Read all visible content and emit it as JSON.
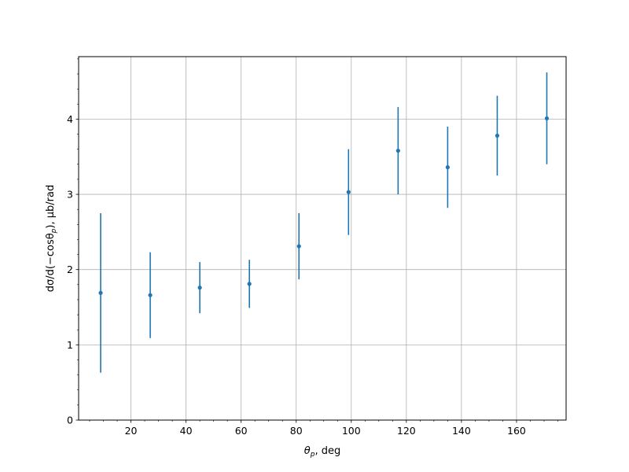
{
  "chart_data": {
    "type": "scatter",
    "title": "",
    "xlabel_main": "θ",
    "xlabel_sub": "p",
    "xlabel_rest": ", deg",
    "ylabel_pre": "dσ/d(−cosθ",
    "ylabel_sub": "p",
    "ylabel_post": "), μb/rad",
    "xlim": [
      1,
      178
    ],
    "ylim": [
      0,
      4.83
    ],
    "xticks": [
      20,
      40,
      60,
      80,
      100,
      120,
      140,
      160
    ],
    "xtick_labels": [
      "20",
      "40",
      "60",
      "80",
      "100",
      "120",
      "140",
      "160"
    ],
    "yticks": [
      0,
      1,
      2,
      3,
      4
    ],
    "ytick_labels": [
      "0",
      "1",
      "2",
      "3",
      "4"
    ],
    "x_minor_step": 5,
    "y_minor_step": 0.2,
    "grid": true,
    "series": [
      {
        "color": "#1f77b4",
        "x": [
          9,
          27,
          45,
          63,
          81,
          99,
          117,
          135,
          153,
          171
        ],
        "y": [
          1.69,
          1.66,
          1.76,
          1.81,
          2.31,
          3.03,
          3.58,
          3.36,
          3.78,
          4.01
        ],
        "yerr": [
          1.06,
          0.57,
          0.34,
          0.32,
          0.44,
          0.57,
          0.58,
          0.54,
          0.53,
          0.61
        ]
      }
    ]
  }
}
